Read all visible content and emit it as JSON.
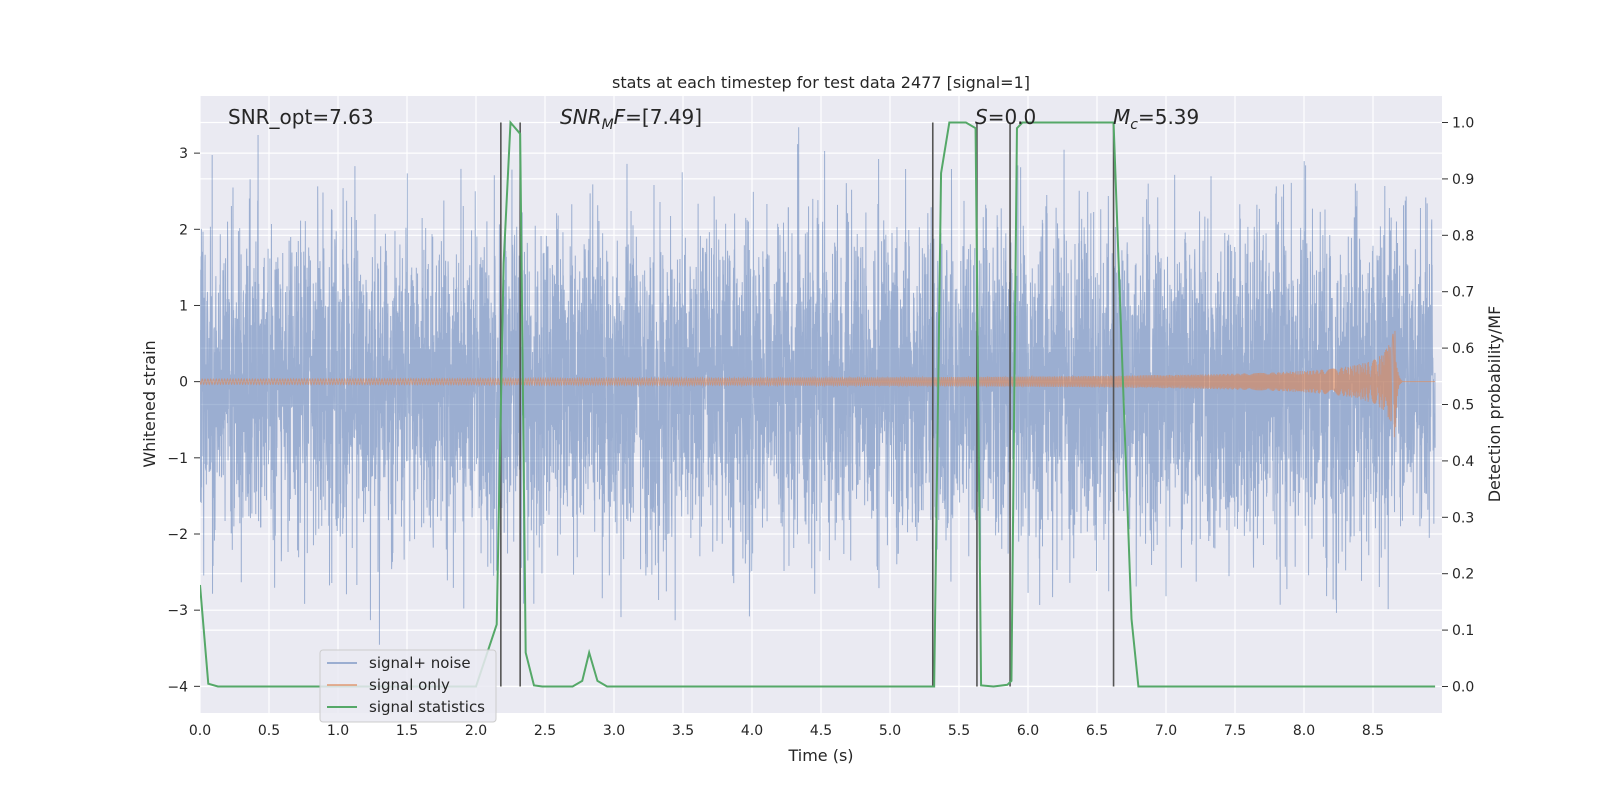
{
  "chart_data": {
    "type": "line",
    "title": "stats at each timestep for test data 2477 [signal=1]",
    "xlabel": "Time (s)",
    "ylabel_left": "Whitened strain",
    "ylabel_right": "Detection probability/MF",
    "xlim": [
      0.0,
      9.0
    ],
    "ylim_left": [
      -4.35,
      3.75
    ],
    "ylim_right": [
      -0.047,
      1.047
    ],
    "x_ticks": [
      "0.0",
      "0.5",
      "1.0",
      "1.5",
      "2.0",
      "2.5",
      "3.0",
      "3.5",
      "4.0",
      "4.5",
      "5.0",
      "5.5",
      "6.0",
      "6.5",
      "7.0",
      "7.5",
      "8.0",
      "8.5"
    ],
    "y_ticks_left": [
      "3",
      "2",
      "1",
      "0",
      "−1",
      "−2",
      "−3",
      "−4"
    ],
    "y_ticks_right": [
      "1.0",
      "0.9",
      "0.8",
      "0.7",
      "0.6",
      "0.5",
      "0.4",
      "0.3",
      "0.2",
      "0.1",
      "0.0"
    ],
    "grid": true,
    "legend_position": "lower-left",
    "annotations": {
      "snr_opt": "SNR_opt=7.63",
      "snr_mf": "=[7.49]",
      "snr_mf_sym": "SNR",
      "snr_mf_sub": "M",
      "snr_mf_f": "F",
      "s_stat": "=0.0",
      "s_sym": "S",
      "mc": "=5.39",
      "mc_sym": "M",
      "mc_sub": "c"
    },
    "series": [
      {
        "name": "signal+ noise",
        "color": "#4c72b0",
        "approx_range": [
          -3.6,
          3.35
        ]
      },
      {
        "name": "signal only",
        "color": "#dd8452",
        "peak_time": 8.66,
        "peak_amplitude": 0.8
      },
      {
        "name": "signal statistics",
        "color": "#55a868",
        "x": [
          0.0,
          0.06,
          0.13,
          0.5,
          1.0,
          1.5,
          2.0,
          2.15,
          2.2,
          2.25,
          2.32,
          2.36,
          2.42,
          2.48,
          2.6,
          2.7,
          2.77,
          2.82,
          2.88,
          2.95,
          3.5,
          4.0,
          4.5,
          5.0,
          5.32,
          5.37,
          5.43,
          5.55,
          5.62,
          5.66,
          5.75,
          5.85,
          5.88,
          5.92,
          5.96,
          6.3,
          6.62,
          6.75,
          6.8,
          7.5,
          8.0,
          8.5,
          8.95
        ],
        "y": [
          0.18,
          0.005,
          0.0,
          0.0,
          0.0,
          0.0,
          0.0,
          0.11,
          0.75,
          1.0,
          0.98,
          0.06,
          0.002,
          0.0,
          0.0,
          0.0,
          0.01,
          0.06,
          0.01,
          0.0,
          0.0,
          0.0,
          0.0,
          0.0,
          0.0,
          0.91,
          1.0,
          1.0,
          0.99,
          0.002,
          0.0,
          0.003,
          0.01,
          0.99,
          1.0,
          1.0,
          1.0,
          0.12,
          0.0,
          0.0,
          0.0,
          0.0,
          0.0
        ]
      }
    ],
    "vertical_markers": [
      2.18,
      2.32,
      5.31,
      5.63,
      5.87,
      6.62
    ]
  }
}
